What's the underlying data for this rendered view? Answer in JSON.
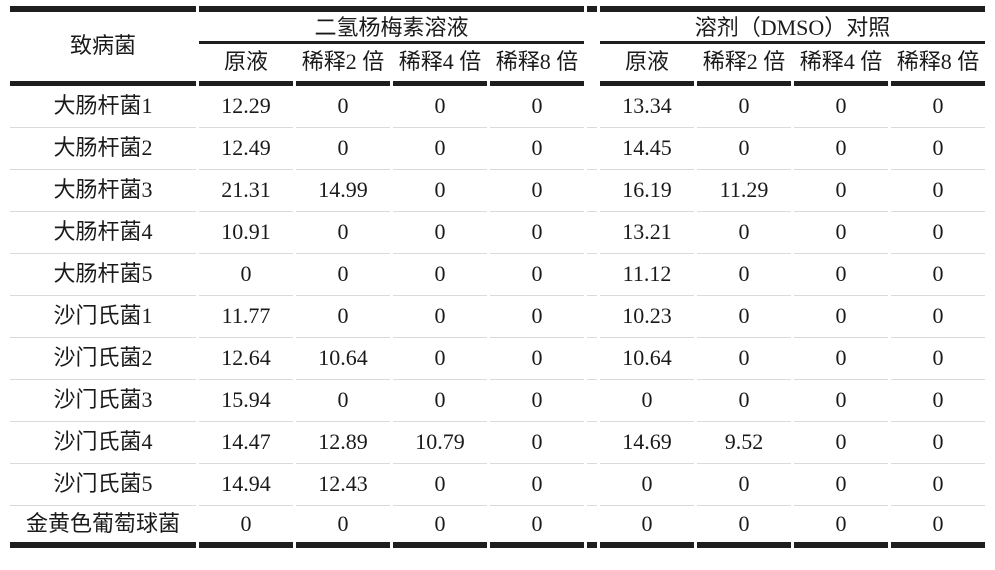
{
  "page": {
    "background_color": "#ffffff",
    "text_color": "#1a1a1a",
    "rule_color": "#1e1e1e",
    "row_divider_color": "#dadada"
  },
  "table": {
    "pathogen_header": "致病菌",
    "groups": [
      {
        "label": "二氢杨梅素溶液",
        "subcols": [
          "原液",
          "稀释2 倍",
          "稀释4 倍",
          "稀释8 倍"
        ]
      },
      {
        "label": "溶剂（DMSO）对照",
        "subcols": [
          "原液",
          "稀释2 倍",
          "稀释4 倍",
          "稀释8 倍"
        ]
      }
    ],
    "rows": [
      {
        "name": "大肠杆菌1",
        "values": [
          "12.29",
          "0",
          "0",
          "0",
          "13.34",
          "0",
          "0",
          "0"
        ]
      },
      {
        "name": "大肠杆菌2",
        "values": [
          "12.49",
          "0",
          "0",
          "0",
          "14.45",
          "0",
          "0",
          "0"
        ]
      },
      {
        "name": "大肠杆菌3",
        "values": [
          "21.31",
          "14.99",
          "0",
          "0",
          "16.19",
          "11.29",
          "0",
          "0"
        ]
      },
      {
        "name": "大肠杆菌4",
        "values": [
          "10.91",
          "0",
          "0",
          "0",
          "13.21",
          "0",
          "0",
          "0"
        ]
      },
      {
        "name": "大肠杆菌5",
        "values": [
          "0",
          "0",
          "0",
          "0",
          "11.12",
          "0",
          "0",
          "0"
        ]
      },
      {
        "name": "沙门氏菌1",
        "values": [
          "11.77",
          "0",
          "0",
          "0",
          "10.23",
          "0",
          "0",
          "0"
        ]
      },
      {
        "name": "沙门氏菌2",
        "values": [
          "12.64",
          "10.64",
          "0",
          "0",
          "10.64",
          "0",
          "0",
          "0"
        ]
      },
      {
        "name": "沙门氏菌3",
        "values": [
          "15.94",
          "0",
          "0",
          "0",
          "0",
          "0",
          "0",
          "0"
        ]
      },
      {
        "name": "沙门氏菌4",
        "values": [
          "14.47",
          "12.89",
          "10.79",
          "0",
          "14.69",
          "9.52",
          "0",
          "0"
        ]
      },
      {
        "name": "沙门氏菌5",
        "values": [
          "14.94",
          "12.43",
          "0",
          "0",
          "0",
          "0",
          "0",
          "0"
        ]
      },
      {
        "name": "金黄色葡萄球菌",
        "values": [
          "0",
          "0",
          "0",
          "0",
          "0",
          "0",
          "0",
          "0"
        ]
      }
    ]
  }
}
